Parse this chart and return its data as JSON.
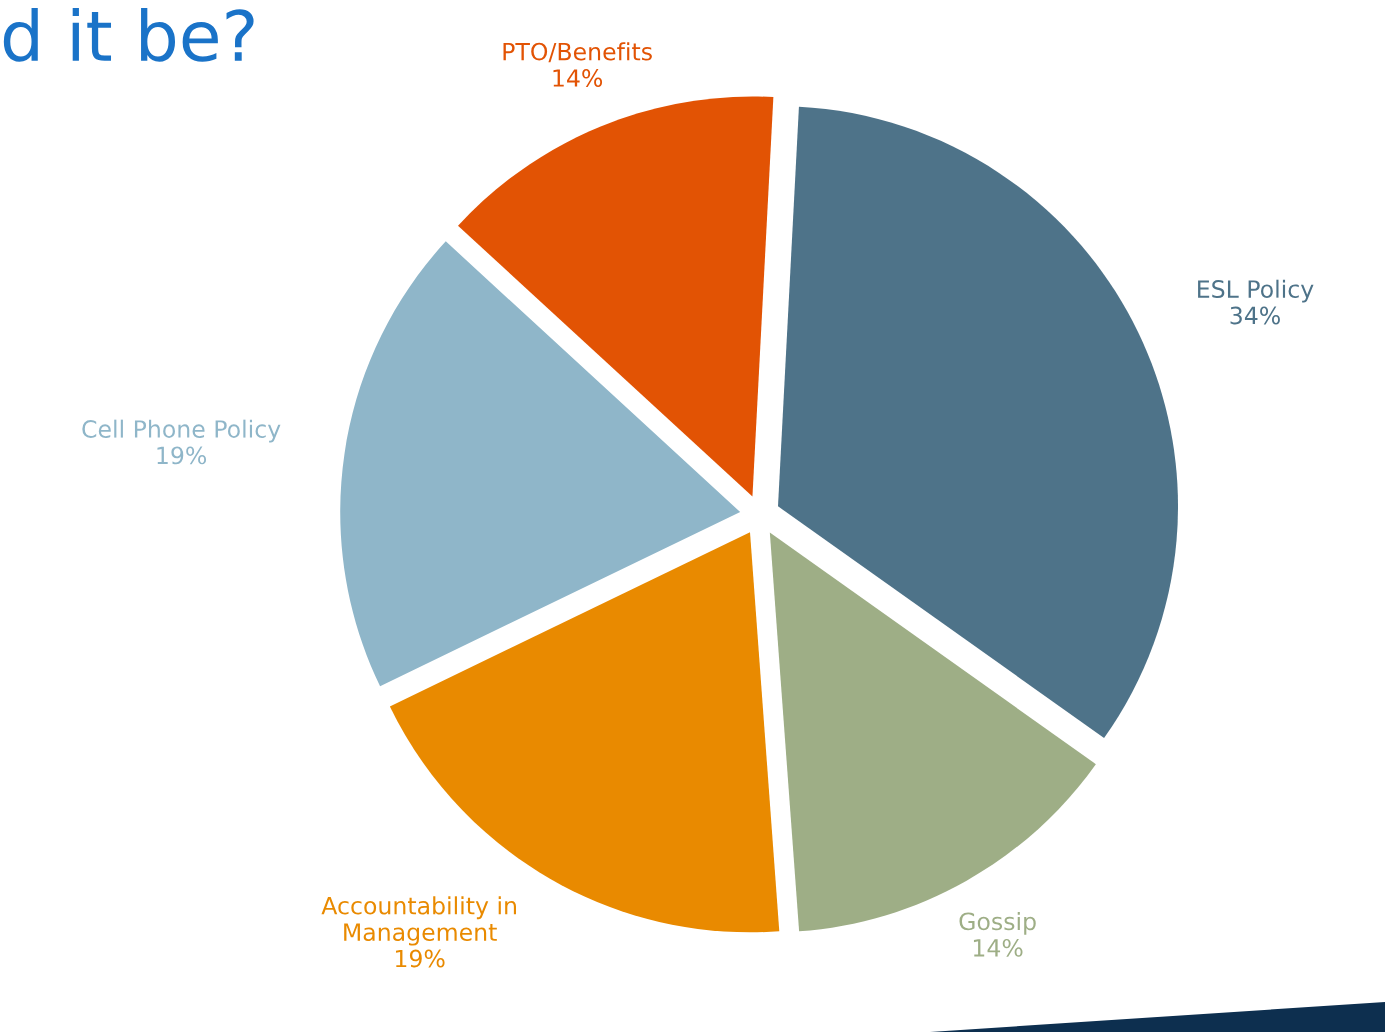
{
  "chart_data": {
    "type": "pie",
    "title": "d it be?",
    "categories": [
      "ESL Policy",
      "Gossip",
      "Accountability in\nManagement",
      "Cell Phone Policy",
      "PTO/Benefits"
    ],
    "values": [
      34,
      14,
      19,
      19,
      14
    ],
    "colors": [
      "#4e7389",
      "#9eae86",
      "#e98a00",
      "#8fb6c9",
      "#e25304"
    ],
    "value_labels": [
      "34%",
      "14%",
      "19%",
      "19%",
      "14%"
    ],
    "legend": false
  }
}
